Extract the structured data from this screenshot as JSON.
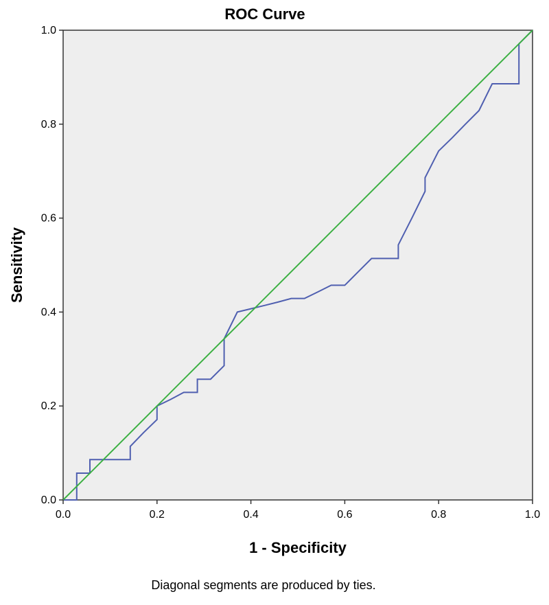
{
  "chart_data": {
    "type": "line",
    "title": "ROC Curve",
    "xlabel": "1 - Specificity",
    "ylabel": "Sensitivity",
    "xlim": [
      0,
      1
    ],
    "ylim": [
      0,
      1
    ],
    "x_ticks": [
      "0.0",
      "0.2",
      "0.4",
      "0.6",
      "0.8",
      "1.0"
    ],
    "y_ticks": [
      "0.0",
      "0.2",
      "0.4",
      "0.6",
      "0.8",
      "1.0"
    ],
    "grid": false,
    "footnote": "Diagonal segments are produced by ties.",
    "colors": {
      "roc": "#4f5fb0",
      "reference": "#3cb043",
      "plot_background": "#eeeeee"
    },
    "series": [
      {
        "role": "roc",
        "x": [
          0.0,
          0.029,
          0.029,
          0.057,
          0.057,
          0.086,
          0.114,
          0.143,
          0.143,
          0.171,
          0.2,
          0.2,
          0.229,
          0.257,
          0.286,
          0.286,
          0.314,
          0.343,
          0.343,
          0.371,
          0.4,
          0.429,
          0.457,
          0.486,
          0.514,
          0.543,
          0.571,
          0.6,
          0.629,
          0.657,
          0.686,
          0.714,
          0.714,
          0.743,
          0.771,
          0.771,
          0.8,
          0.829,
          0.857,
          0.886,
          0.914,
          0.943,
          0.971,
          0.971,
          1.0
        ],
        "y": [
          0.0,
          0.0,
          0.057,
          0.057,
          0.086,
          0.086,
          0.086,
          0.086,
          0.114,
          0.143,
          0.171,
          0.2,
          0.214,
          0.229,
          0.229,
          0.257,
          0.257,
          0.286,
          0.343,
          0.4,
          0.407,
          0.414,
          0.421,
          0.429,
          0.429,
          0.443,
          0.457,
          0.457,
          0.486,
          0.514,
          0.514,
          0.514,
          0.543,
          0.6,
          0.657,
          0.686,
          0.743,
          0.771,
          0.8,
          0.829,
          0.886,
          0.886,
          0.886,
          0.971,
          1.0
        ]
      },
      {
        "role": "reference",
        "x": [
          0,
          1
        ],
        "y": [
          0,
          1
        ]
      }
    ]
  }
}
